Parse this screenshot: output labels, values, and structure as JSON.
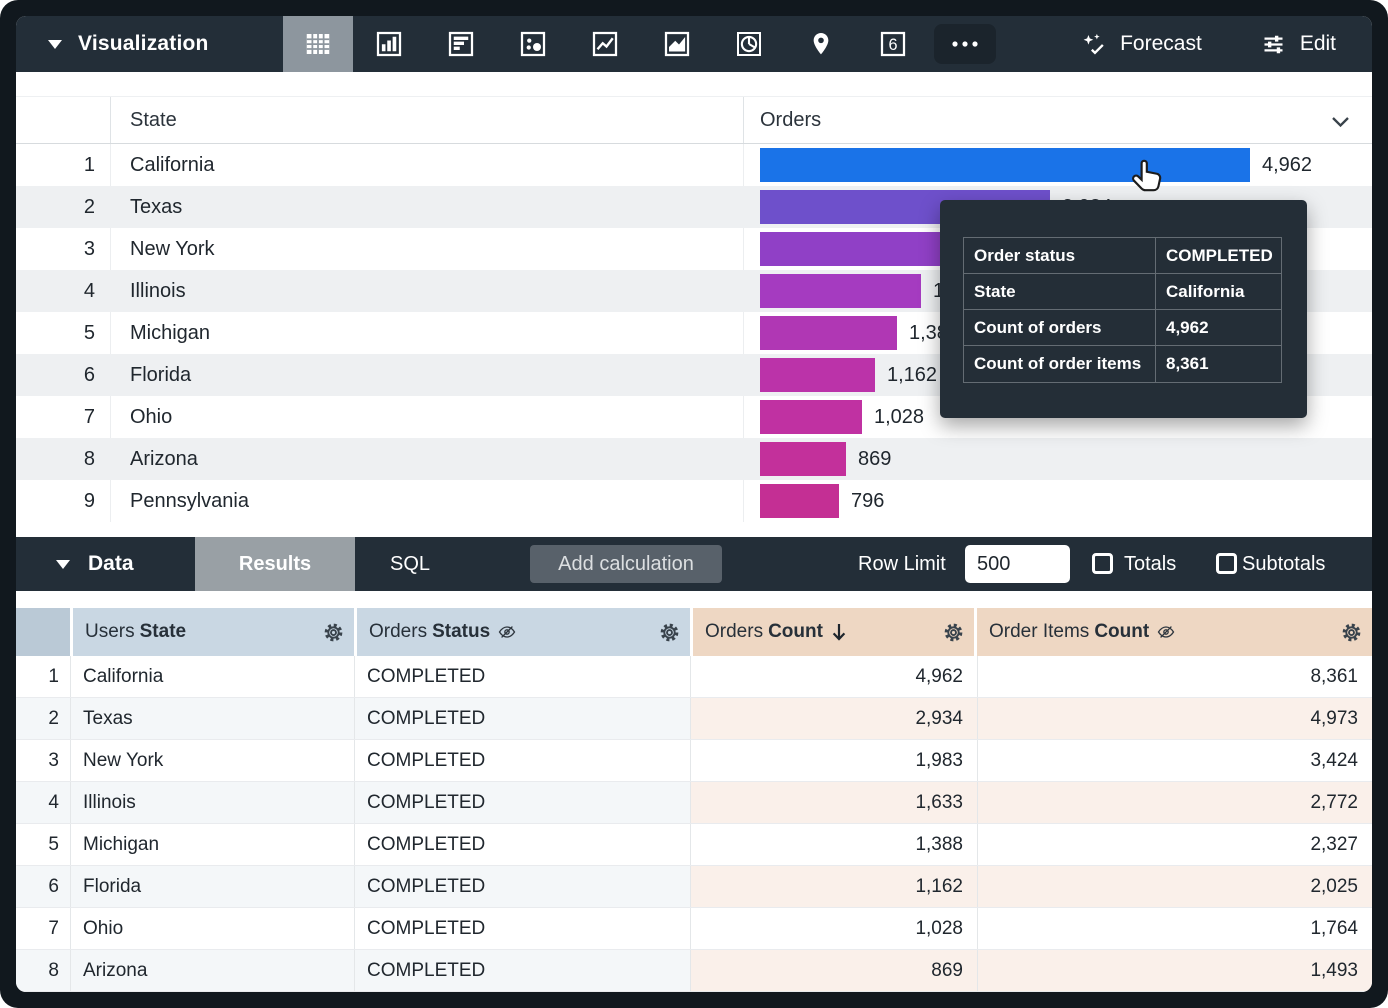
{
  "theme": {
    "toolbar_bg": "#232e38",
    "frame_bg": "#11181e",
    "selected_icon_bg": "#8d969e",
    "results_tab_bg": "#99a0a5",
    "dimension_header_bg": "#c9d7e3",
    "measure_header_bg": "#eed7c3",
    "row_alt_bg": "#eef0f2",
    "measure_alt_bg": "#faf0ea"
  },
  "viz_toolbar": {
    "title": "Visualization",
    "icons": [
      "table-icon",
      "column-chart-icon",
      "horizontal-bar-chart-icon",
      "scatter-chart-icon",
      "line-chart-icon",
      "area-chart-icon",
      "pie-chart-icon",
      "map-pin-icon",
      "single-value-icon",
      "more-options-icon"
    ],
    "single_value_glyph": "6",
    "forecast_label": "Forecast",
    "edit_label": "Edit"
  },
  "viz_table": {
    "state_header": "State",
    "orders_header": "Orders",
    "max_value": 4962,
    "bar_max_width": 490,
    "rows": [
      {
        "rank": "1",
        "state": "California",
        "value": 4962,
        "value_label": "4,962",
        "color": "#1a73e8"
      },
      {
        "rank": "2",
        "state": "Texas",
        "value": 2934,
        "value_label": "2,934",
        "color": "#6e50cb"
      },
      {
        "rank": "3",
        "state": "New York",
        "value": 1983,
        "value_label": "1,983",
        "color": "#9040c6"
      },
      {
        "rank": "4",
        "state": "Illinois",
        "value": 1633,
        "value_label": "1,633",
        "color": "#a53bc0"
      },
      {
        "rank": "5",
        "state": "Michigan",
        "value": 1388,
        "value_label": "1,388",
        "color": "#b037b4"
      },
      {
        "rank": "6",
        "state": "Florida",
        "value": 1162,
        "value_label": "1,162",
        "color": "#bb33a9"
      },
      {
        "rank": "7",
        "state": "Ohio",
        "value": 1028,
        "value_label": "1,028",
        "color": "#c031a2"
      },
      {
        "rank": "8",
        "state": "Arizona",
        "value": 869,
        "value_label": "869",
        "color": "#c3309b"
      },
      {
        "rank": "9",
        "state": "Pennsylvania",
        "value": 796,
        "value_label": "796",
        "color": "#c42f94"
      }
    ]
  },
  "chart_data": {
    "type": "bar",
    "orientation": "horizontal",
    "categories": [
      "California",
      "Texas",
      "New York",
      "Illinois",
      "Michigan",
      "Florida",
      "Ohio",
      "Arizona",
      "Pennsylvania"
    ],
    "values": [
      4962,
      2934,
      1983,
      1633,
      1388,
      1162,
      1028,
      869,
      796
    ],
    "title": "Orders",
    "xlabel": "",
    "ylabel": "State",
    "xlim": [
      0,
      4962
    ]
  },
  "tooltip": {
    "rows": [
      {
        "label": "Order status",
        "value": "COMPLETED"
      },
      {
        "label": "State",
        "value": "California"
      },
      {
        "label": "Count of orders",
        "value": "4,962"
      },
      {
        "label": "Count of order items",
        "value": "8,361"
      }
    ]
  },
  "data_panel": {
    "title": "Data",
    "tabs": {
      "results": "Results",
      "sql": "SQL"
    },
    "active_tab": "Results",
    "add_calculation_label": "Add calculation",
    "row_limit_label": "Row Limit",
    "row_limit_value": "500",
    "totals_label": "Totals",
    "subtotals_label": "Subtotals"
  },
  "data_table": {
    "header": {
      "users_state": {
        "view": "Users",
        "field": "State"
      },
      "orders_status": {
        "view": "Orders",
        "field": "Status"
      },
      "orders_count": {
        "view": "Orders",
        "field": "Count",
        "sort": "desc"
      },
      "order_items_count": {
        "view": "Order Items",
        "field": "Count"
      }
    },
    "rows": [
      [
        "1",
        "California",
        "COMPLETED",
        "4,962",
        "8,361"
      ],
      [
        "2",
        "Texas",
        "COMPLETED",
        "2,934",
        "4,973"
      ],
      [
        "3",
        "New York",
        "COMPLETED",
        "1,983",
        "3,424"
      ],
      [
        "4",
        "Illinois",
        "COMPLETED",
        "1,633",
        "2,772"
      ],
      [
        "5",
        "Michigan",
        "COMPLETED",
        "1,388",
        "2,327"
      ],
      [
        "6",
        "Florida",
        "COMPLETED",
        "1,162",
        "2,025"
      ],
      [
        "7",
        "Ohio",
        "COMPLETED",
        "1,028",
        "1,764"
      ],
      [
        "8",
        "Arizona",
        "COMPLETED",
        "869",
        "1,493"
      ]
    ]
  }
}
